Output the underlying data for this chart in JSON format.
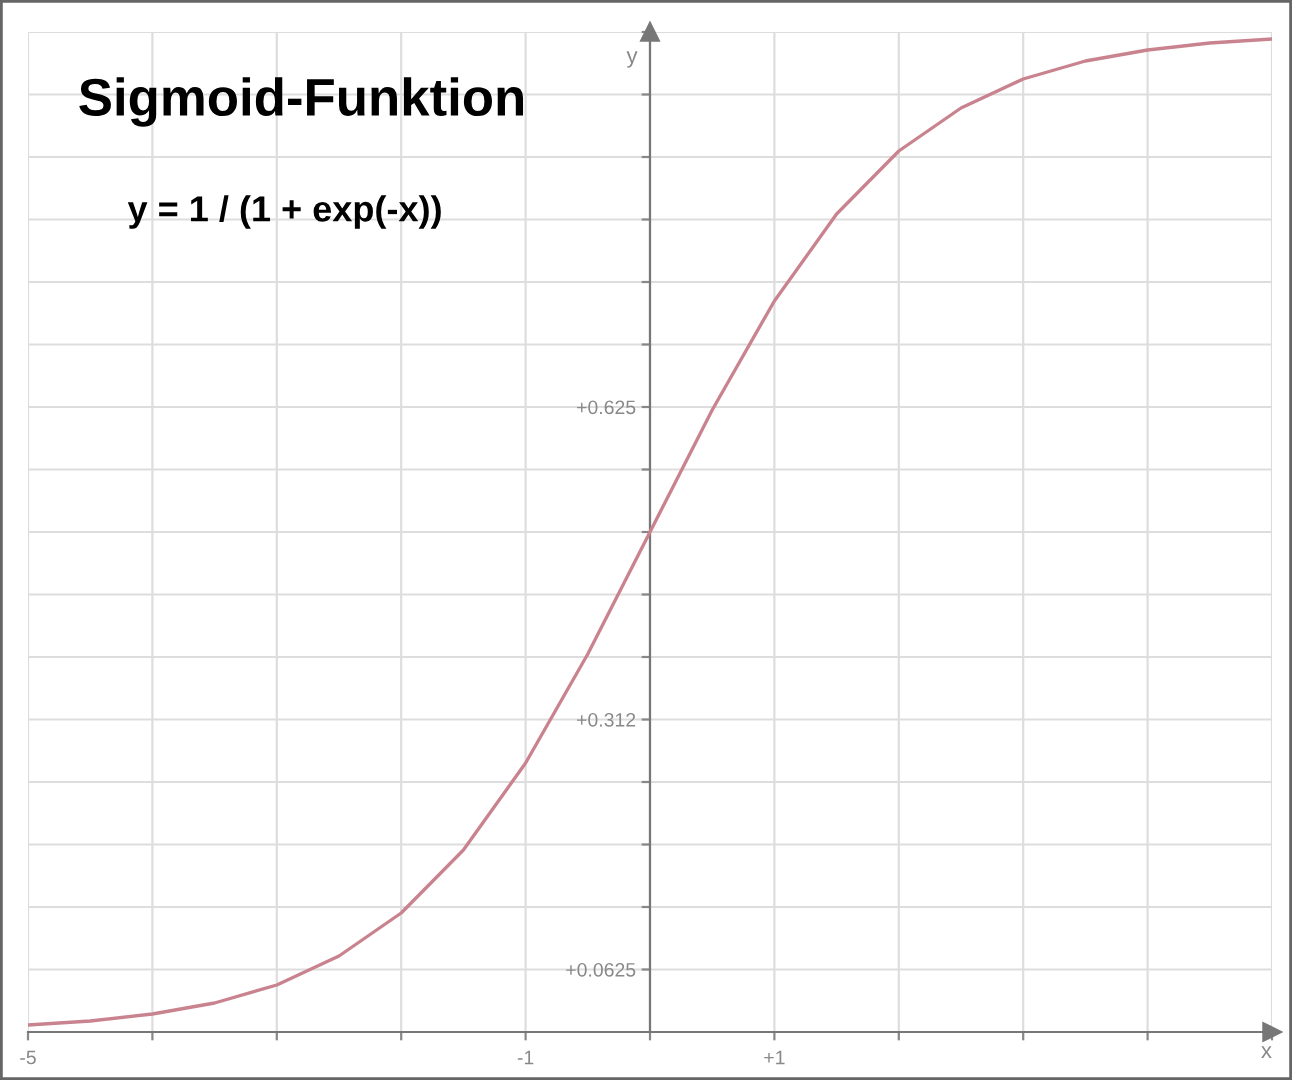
{
  "chart_data": {
    "type": "line",
    "title": "Sigmoid-Funktion",
    "subtitle": "y = 1 / (1 + exp(-x))",
    "xlabel": "x",
    "ylabel": "y",
    "x": [
      -5,
      -4.5,
      -4,
      -3.5,
      -3,
      -2.5,
      -2,
      -1.5,
      -1,
      -0.5,
      0,
      0.5,
      1,
      1.5,
      2,
      2.5,
      3,
      3.5,
      4,
      4.5,
      5
    ],
    "series": [
      {
        "color": "#c9838f",
        "values": [
          0.007,
          0.011,
          0.018,
          0.029,
          0.047,
          0.076,
          0.119,
          0.182,
          0.269,
          0.378,
          0.5,
          0.622,
          0.731,
          0.818,
          0.881,
          0.924,
          0.953,
          0.971,
          0.982,
          0.989,
          0.993
        ]
      }
    ],
    "xlim": [
      -5,
      5
    ],
    "ylim": [
      0,
      1
    ],
    "xticks": [
      {
        "value": -5,
        "label": "-5"
      },
      {
        "value": -4,
        "label": null
      },
      {
        "value": -3,
        "label": null
      },
      {
        "value": -2,
        "label": null
      },
      {
        "value": -1,
        "label": "-1"
      },
      {
        "value": 0,
        "label": null
      },
      {
        "value": 1,
        "label": "+1"
      },
      {
        "value": 2,
        "label": null
      },
      {
        "value": 3,
        "label": null
      },
      {
        "value": 4,
        "label": null
      },
      {
        "value": 5,
        "label": null
      }
    ],
    "yticks": [
      {
        "value": 0.0625,
        "label": "+0.0625"
      },
      {
        "value": 0.125,
        "label": null
      },
      {
        "value": 0.1875,
        "label": null
      },
      {
        "value": 0.25,
        "label": null
      },
      {
        "value": 0.3125,
        "label": "+0.312"
      },
      {
        "value": 0.375,
        "label": null
      },
      {
        "value": 0.4375,
        "label": null
      },
      {
        "value": 0.5,
        "label": null
      },
      {
        "value": 0.5625,
        "label": null
      },
      {
        "value": 0.625,
        "label": "+0.625"
      },
      {
        "value": 0.6875,
        "label": null
      },
      {
        "value": 0.75,
        "label": null
      },
      {
        "value": 0.8125,
        "label": null
      },
      {
        "value": 0.875,
        "label": null
      },
      {
        "value": 0.9375,
        "label": null
      },
      {
        "value": 1,
        "label": null
      }
    ],
    "grid": true,
    "legend": false,
    "marker": "none",
    "line_style": "solid"
  }
}
